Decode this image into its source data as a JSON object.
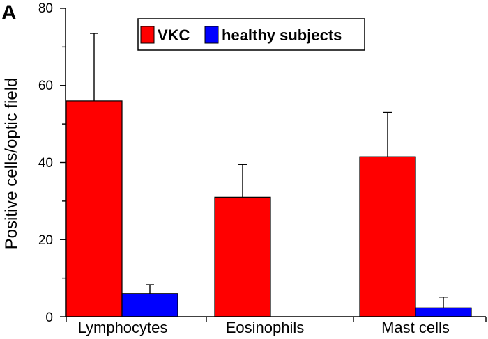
{
  "panel_label": "A",
  "chart_data": {
    "type": "bar",
    "categories": [
      "Lymphocytes",
      "Eosinophils",
      "Mast cells"
    ],
    "series": [
      {
        "name": "VKC",
        "color": "#ff0000",
        "values": [
          56,
          31,
          41.5
        ],
        "errors": [
          17.5,
          8.5,
          11.5
        ]
      },
      {
        "name": "healthy subjects",
        "color": "#0000ff",
        "values": [
          6,
          0,
          2.3
        ],
        "errors": [
          2.3,
          0,
          2.8
        ]
      }
    ],
    "ylabel": "Positive cells/optic field",
    "ylim": [
      0,
      80
    ],
    "yticks": [
      "0",
      "20",
      "40",
      "60",
      "80"
    ],
    "legend_position": "top-center",
    "grid": false
  }
}
